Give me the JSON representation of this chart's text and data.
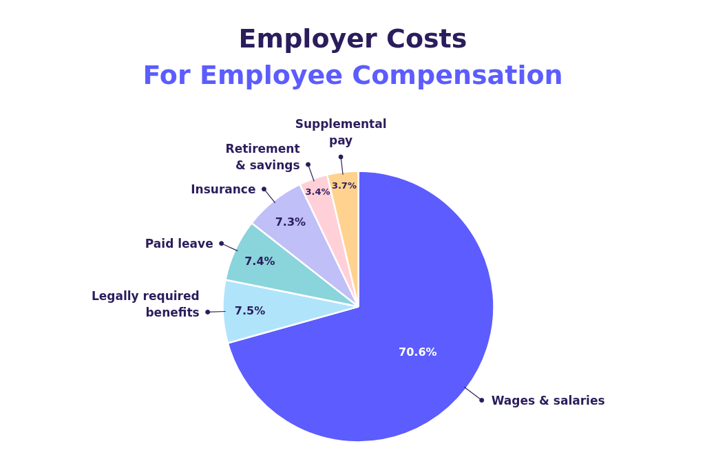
{
  "chart_data": {
    "type": "pie",
    "title": "Employer Costs",
    "subtitle": "For Employee Compensation",
    "categories": [
      "Wages & salaries",
      "Legally required benefits",
      "Paid leave",
      "Insurance",
      "Retirement & savings",
      "Supplemental pay"
    ],
    "values": [
      70.6,
      7.5,
      7.4,
      7.3,
      3.4,
      3.7
    ],
    "colors": [
      "#5c5cff",
      "#b0e4fb",
      "#8ad4dc",
      "#c0bff8",
      "#ffd0d8",
      "#ffd28f"
    ],
    "value_labels": [
      "70.6%",
      "7.5%",
      "7.4%",
      "7.3%",
      "3.4%",
      "3.7%"
    ]
  }
}
